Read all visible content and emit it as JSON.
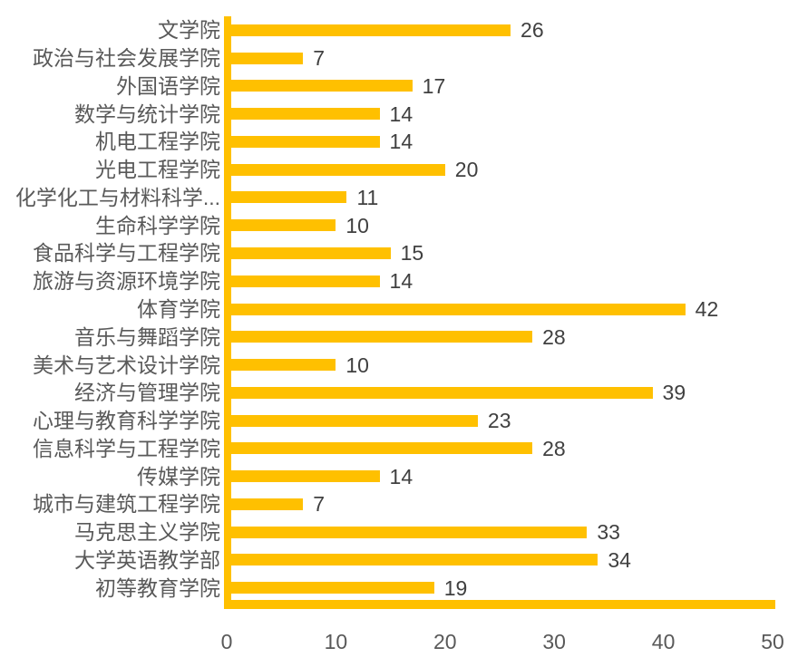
{
  "chart_data": {
    "type": "bar",
    "orientation": "horizontal",
    "title": "",
    "xlabel": "",
    "ylabel": "",
    "categories": [
      "文学院",
      "政治与社会发展学院",
      "外国语学院",
      "数学与统计学院",
      "机电工程学院",
      "光电工程学院",
      "化学化工与材料科学...",
      "生命科学学院",
      "食品科学与工程学院",
      "旅游与资源环境学院",
      "体育学院",
      "音乐与舞蹈学院",
      "美术与艺术设计学院",
      "经济与管理学院",
      "心理与教育科学学院",
      "信息科学与工程学院",
      "传媒学院",
      "城市与建筑工程学院",
      "马克思主义学院",
      "大学英语教学部",
      "初等教育学院"
    ],
    "values": [
      26,
      7,
      17,
      14,
      14,
      20,
      11,
      10,
      15,
      14,
      42,
      28,
      10,
      39,
      23,
      28,
      14,
      7,
      33,
      34,
      19
    ],
    "value_labels_shown": true,
    "xlim": [
      0,
      50
    ],
    "x_ticks": [
      "0",
      "10",
      "20",
      "30",
      "40",
      "50"
    ],
    "grid": false,
    "legend": null,
    "colors": {
      "bar": "#FFC000",
      "axis_line": "#FFC000",
      "category_label": "#595959",
      "value_label": "#404040",
      "tick_label": "#595959",
      "background": "#FFFFFF"
    }
  }
}
